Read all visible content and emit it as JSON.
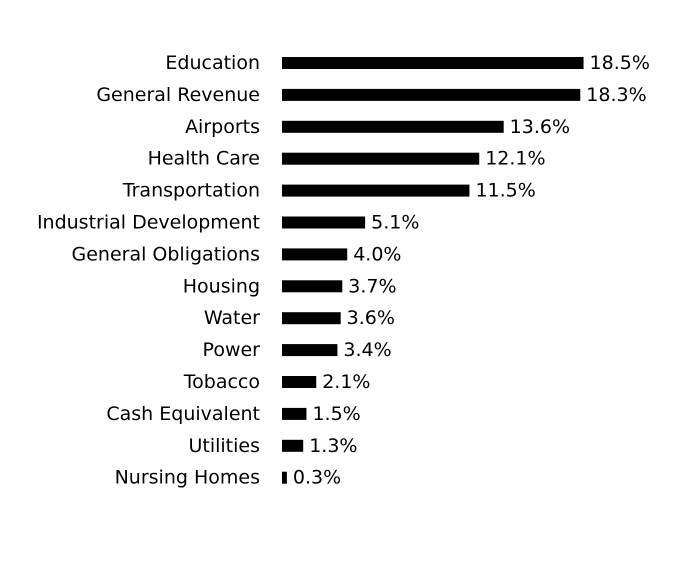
{
  "chart_data": {
    "type": "bar",
    "orientation": "horizontal",
    "title": "",
    "xlabel": "",
    "ylabel": "",
    "grid": false,
    "legend": "none",
    "bar_color": "#000000",
    "value_suffix": "%",
    "categories": [
      "Education",
      "General Revenue",
      "Airports",
      "Health Care",
      "Transportation",
      "Industrial Development",
      "General Obligations",
      "Housing",
      "Water",
      "Power",
      "Tobacco",
      "Cash Equivalent",
      "Utilities",
      "Nursing Homes"
    ],
    "values": [
      18.5,
      18.3,
      13.6,
      12.1,
      11.5,
      5.1,
      4.0,
      3.7,
      3.6,
      3.4,
      2.1,
      1.5,
      1.3,
      0.3
    ],
    "value_labels": [
      "18.5%",
      "18.3%",
      "13.6%",
      "12.1%",
      "11.5%",
      "5.1%",
      "4.0%",
      "3.7%",
      "3.6%",
      "3.4%",
      "2.1%",
      "1.5%",
      "1.3%",
      "0.3%"
    ]
  }
}
